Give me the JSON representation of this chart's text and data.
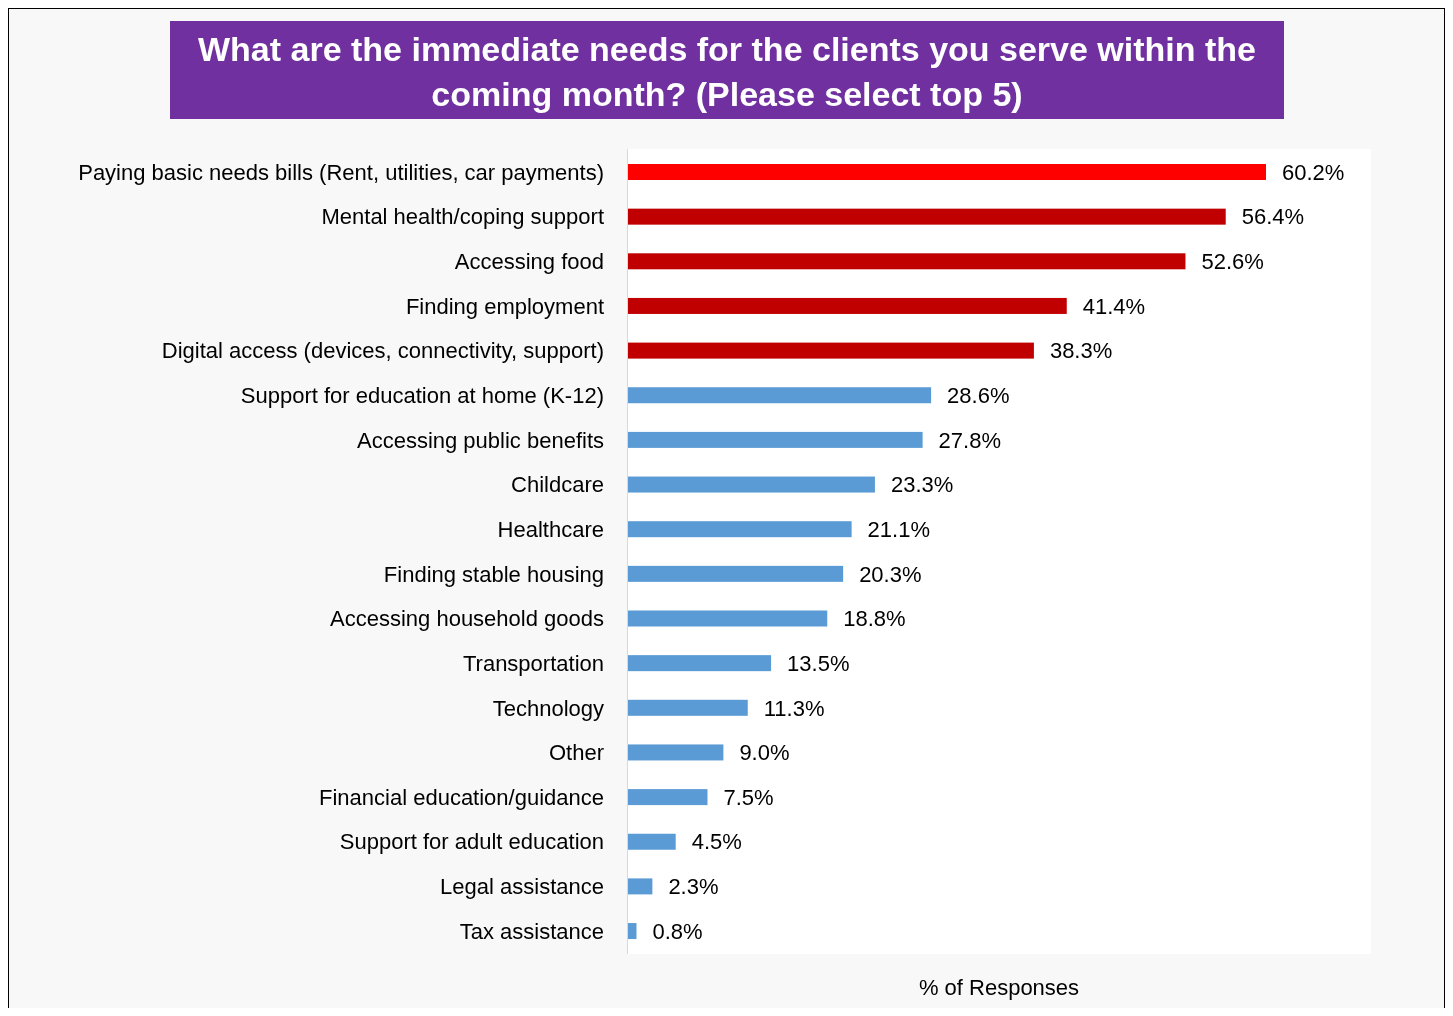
{
  "chart_data": {
    "type": "bar",
    "orientation": "horizontal",
    "title": "What are the immediate needs for the clients you serve within the coming month? (Please select top 5)",
    "xlabel": "% of Responses",
    "categories": [
      "Paying basic needs bills (Rent, utilities, car payments)",
      "Mental health/coping support",
      "Accessing food",
      "Finding employment",
      "Digital access (devices, connectivity, support)",
      "Support for education at home (K-12)",
      "Accessing public benefits",
      "Childcare",
      "Healthcare",
      "Finding stable housing",
      "Accessing household goods",
      "Transportation",
      "Technology",
      "Other",
      "Financial education/guidance",
      "Support for adult education",
      "Legal assistance",
      "Tax assistance"
    ],
    "values": [
      60.2,
      56.4,
      52.6,
      41.4,
      38.3,
      28.6,
      27.8,
      23.3,
      21.1,
      20.3,
      18.8,
      13.5,
      11.3,
      9.0,
      7.5,
      4.5,
      2.3,
      0.8
    ],
    "value_labels": [
      "60.2%",
      "56.4%",
      "52.6%",
      "41.4%",
      "38.3%",
      "28.6%",
      "27.8%",
      "23.3%",
      "21.1%",
      "20.3%",
      "18.8%",
      "13.5%",
      "11.3%",
      "9.0%",
      "7.5%",
      "4.5%",
      "2.3%",
      "0.8%"
    ],
    "colors": [
      "#ff0000",
      "#c00000",
      "#c00000",
      "#c00000",
      "#c00000",
      "#5b9bd5",
      "#5b9bd5",
      "#5b9bd5",
      "#5b9bd5",
      "#5b9bd5",
      "#5b9bd5",
      "#5b9bd5",
      "#5b9bd5",
      "#5b9bd5",
      "#5b9bd5",
      "#5b9bd5",
      "#5b9bd5",
      "#5b9bd5"
    ]
  }
}
